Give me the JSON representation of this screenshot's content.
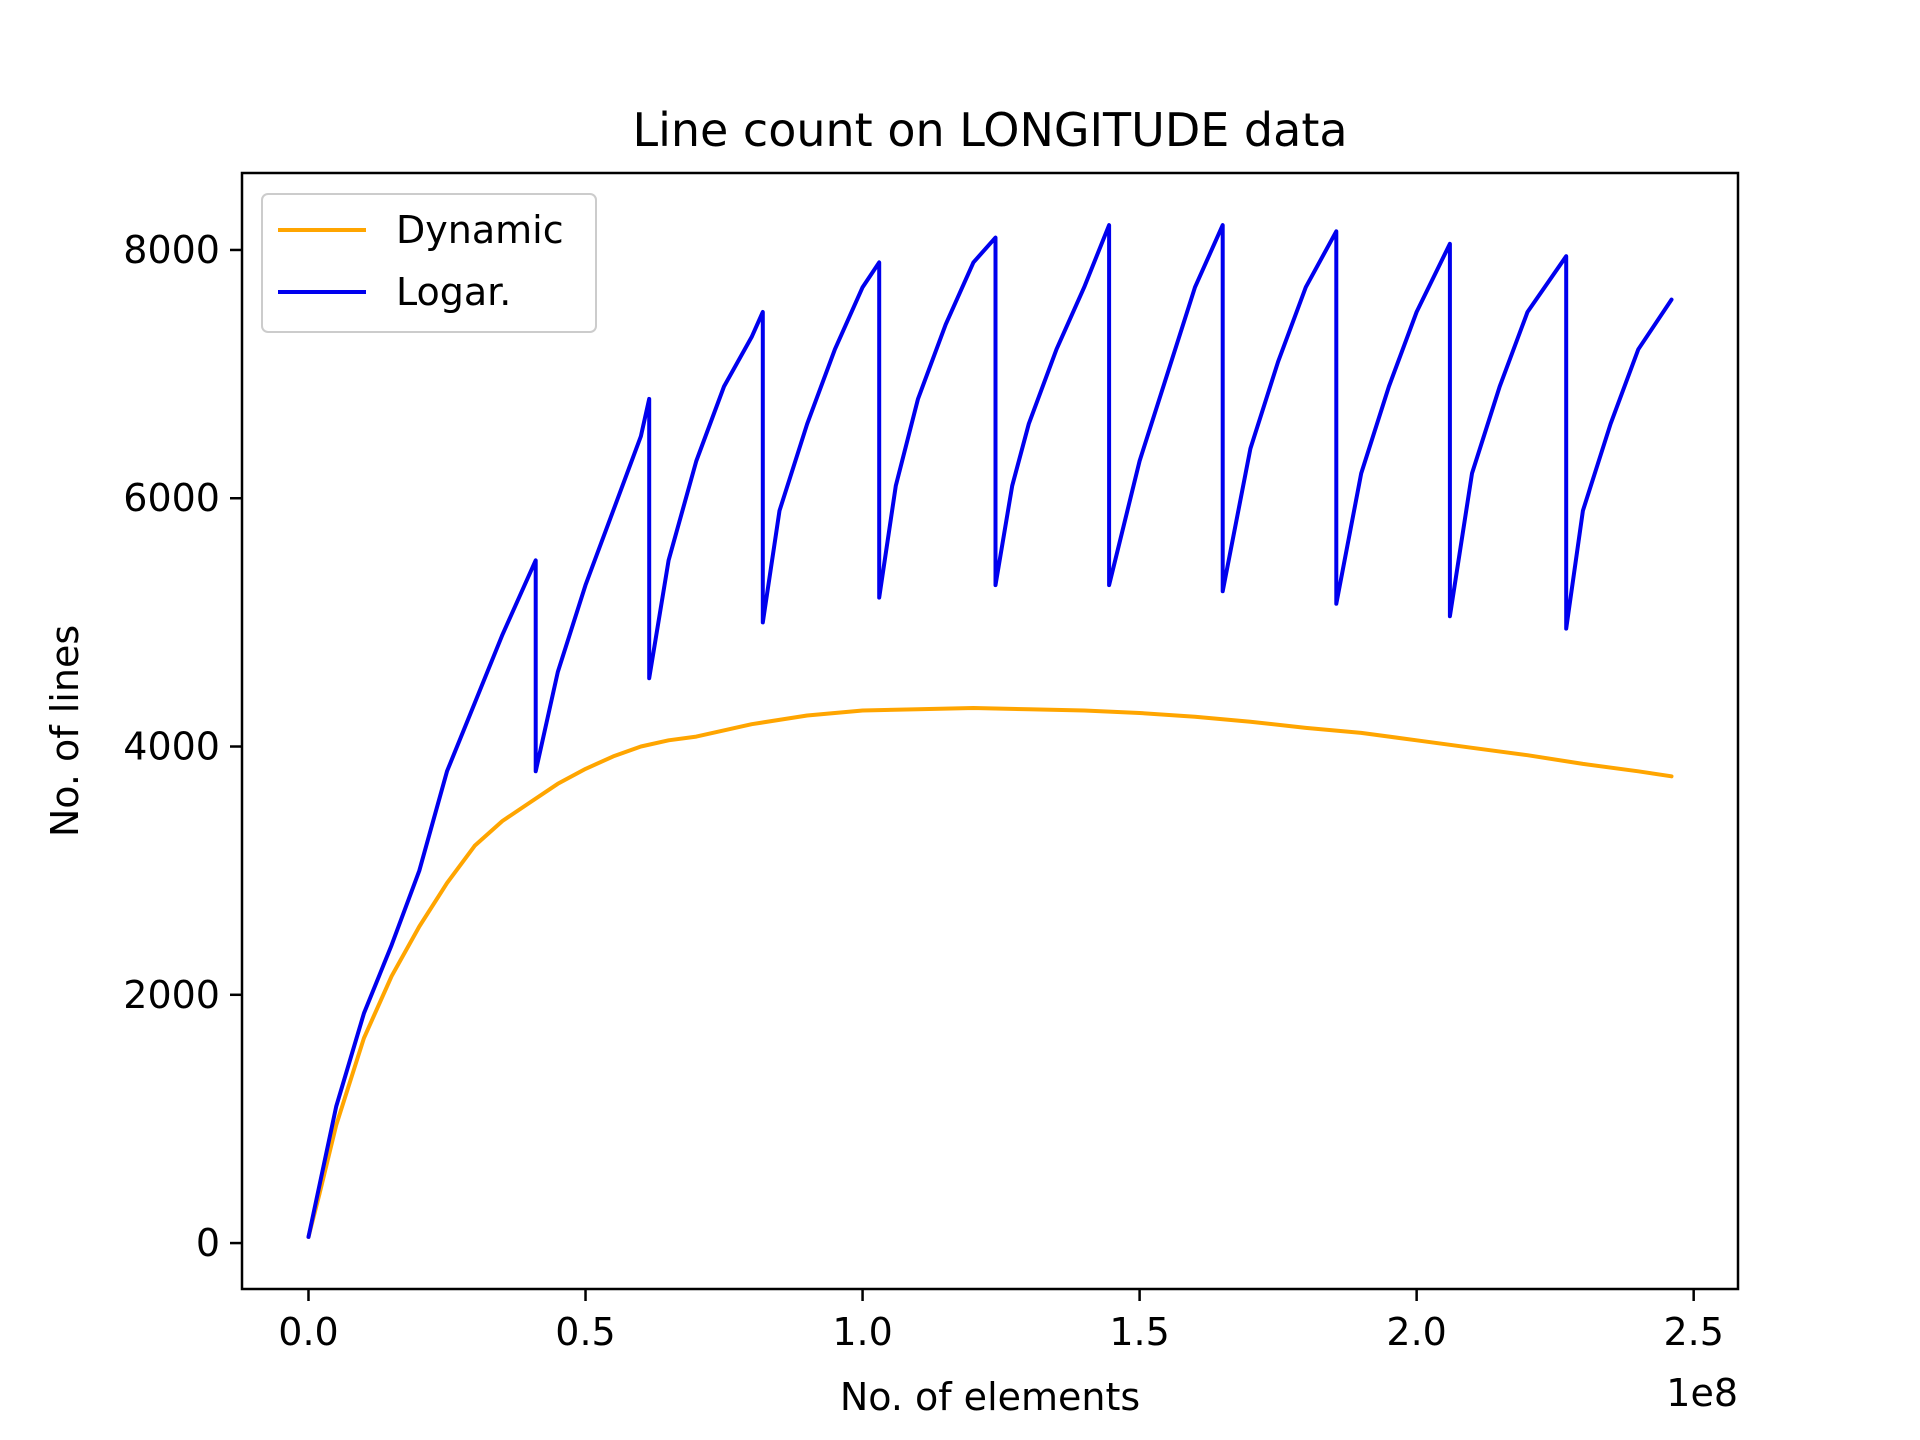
{
  "chart_data": {
    "type": "line",
    "title": "Line count on LONGITUDE data",
    "xlabel": "No. of elements",
    "ylabel": "No. of lines",
    "x_offset_label": "1e8",
    "x_scale": 100000000,
    "xlim": [
      -0.12,
      2.58
    ],
    "ylim": [
      -370,
      8620
    ],
    "xticks": [
      0.0,
      0.5,
      1.0,
      1.5,
      2.0,
      2.5
    ],
    "xtick_labels": [
      "0.0",
      "0.5",
      "1.0",
      "1.5",
      "2.0",
      "2.5"
    ],
    "yticks": [
      0,
      2000,
      4000,
      6000,
      8000
    ],
    "ytick_labels": [
      "0",
      "2000",
      "4000",
      "6000",
      "8000"
    ],
    "grid": false,
    "legend_position": "upper-left",
    "series": [
      {
        "name": "Dynamic",
        "color": "#ffa500",
        "x": [
          0.0,
          0.02,
          0.05,
          0.1,
          0.15,
          0.2,
          0.25,
          0.3,
          0.35,
          0.4,
          0.45,
          0.5,
          0.55,
          0.6,
          0.65,
          0.7,
          0.8,
          0.9,
          1.0,
          1.1,
          1.2,
          1.3,
          1.4,
          1.5,
          1.6,
          1.7,
          1.8,
          1.9,
          2.0,
          2.1,
          2.2,
          2.3,
          2.4,
          2.46
        ],
        "y": [
          50,
          400,
          950,
          1650,
          2150,
          2550,
          2900,
          3200,
          3400,
          3550,
          3700,
          3820,
          3920,
          4000,
          4050,
          4080,
          4180,
          4250,
          4290,
          4300,
          4310,
          4300,
          4290,
          4270,
          4240,
          4200,
          4150,
          4110,
          4050,
          3990,
          3930,
          3860,
          3800,
          3760
        ]
      },
      {
        "name": "Logar.",
        "color": "#0000ee",
        "x": [
          0.0,
          0.05,
          0.1,
          0.15,
          0.2,
          0.25,
          0.3,
          0.35,
          0.41,
          0.41,
          0.45,
          0.5,
          0.55,
          0.6,
          0.615,
          0.615,
          0.65,
          0.7,
          0.75,
          0.8,
          0.82,
          0.82,
          0.85,
          0.9,
          0.95,
          1.0,
          1.03,
          1.03,
          1.06,
          1.1,
          1.15,
          1.2,
          1.24,
          1.24,
          1.27,
          1.3,
          1.35,
          1.4,
          1.445,
          1.445,
          1.5,
          1.55,
          1.6,
          1.65,
          1.65,
          1.7,
          1.75,
          1.8,
          1.855,
          1.855,
          1.9,
          1.95,
          2.0,
          2.06,
          2.06,
          2.1,
          2.15,
          2.2,
          2.27,
          2.27,
          2.3,
          2.35,
          2.4,
          2.46
        ],
        "y": [
          50,
          1100,
          1850,
          2400,
          3000,
          3800,
          4350,
          4900,
          5500,
          3800,
          4600,
          5300,
          5900,
          6500,
          6800,
          4550,
          5500,
          6300,
          6900,
          7300,
          7500,
          5000,
          5900,
          6600,
          7200,
          7700,
          7900,
          5200,
          6100,
          6800,
          7400,
          7900,
          8100,
          5300,
          6100,
          6600,
          7200,
          7700,
          8200,
          5300,
          6300,
          7000,
          7700,
          8200,
          5250,
          6400,
          7100,
          7700,
          8150,
          5150,
          6200,
          6900,
          7500,
          8050,
          5050,
          6200,
          6900,
          7500,
          7950,
          4950,
          5900,
          6600,
          7200,
          7600
        ]
      }
    ]
  }
}
